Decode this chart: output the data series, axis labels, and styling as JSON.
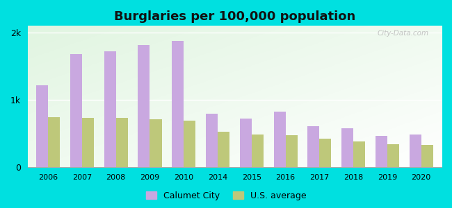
{
  "title": "Burglaries per 100,000 population",
  "years": [
    2006,
    2007,
    2008,
    2009,
    2010,
    2014,
    2015,
    2016,
    2017,
    2018,
    2019,
    2020
  ],
  "calumet_city": [
    1220,
    1680,
    1720,
    1820,
    1880,
    800,
    720,
    830,
    610,
    580,
    470,
    490
  ],
  "us_average": [
    740,
    730,
    730,
    710,
    690,
    530,
    490,
    480,
    430,
    380,
    340,
    330
  ],
  "bar_color_calumet": "#c9a8e0",
  "bar_color_us": "#bec87a",
  "ylabel_ticks": [
    "0",
    "1k",
    "2k"
  ],
  "ytick_vals": [
    0,
    1000,
    2000
  ],
  "ylim": [
    0,
    2100
  ],
  "background_color_outer": "#00e0e0",
  "legend_label_calumet": "Calumet City",
  "legend_label_us": "U.S. average",
  "title_fontsize": 13,
  "bar_width": 0.35,
  "figsize": [
    6.5,
    3.0
  ],
  "dpi": 100,
  "watermark": "City-Data.com"
}
